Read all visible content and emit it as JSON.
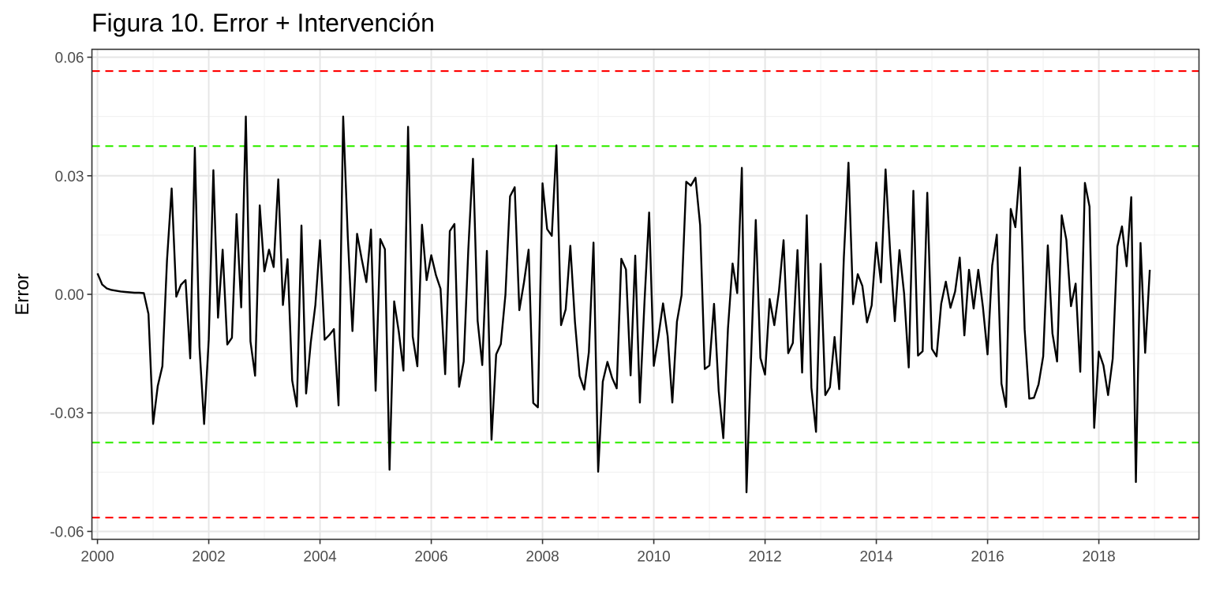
{
  "chart_data": {
    "type": "line",
    "title": "Figura 10. Error + Intervención",
    "xlabel": "",
    "ylabel": "Error",
    "xlim": [
      1999.9,
      2019.8
    ],
    "ylim": [
      -0.062,
      0.062
    ],
    "x_ticks": [
      2000,
      2002,
      2004,
      2006,
      2008,
      2010,
      2012,
      2014,
      2016,
      2018
    ],
    "y_ticks": [
      -0.06,
      -0.03,
      0.0,
      0.03,
      0.06
    ],
    "y_tick_labels": [
      "-0.06",
      "-0.03",
      "0.00",
      "0.03",
      "0.06"
    ],
    "grid": true,
    "legend": "none",
    "reference_lines": [
      {
        "y": 0.0565,
        "color": "#ff0000",
        "style": "dashed"
      },
      {
        "y": 0.0375,
        "color": "#33ee00",
        "style": "dashed"
      },
      {
        "y": -0.0375,
        "color": "#33ee00",
        "style": "dashed"
      },
      {
        "y": -0.0565,
        "color": "#ff0000",
        "style": "dashed"
      }
    ],
    "series": [
      {
        "color": "#000000",
        "x_start": 2000.0,
        "x_step": 0.08333,
        "values": [
          0.0053,
          0.0025,
          0.0015,
          0.0011,
          0.0009,
          0.0007,
          0.0006,
          0.0005,
          0.0004,
          0.0004,
          0.0003,
          -0.005,
          -0.0328,
          -0.0232,
          -0.0182,
          0.0087,
          0.0268,
          -0.0006,
          0.0024,
          0.0036,
          -0.0162,
          0.0371,
          -0.0133,
          -0.0328,
          -0.0114,
          0.0314,
          -0.0059,
          0.0113,
          -0.0127,
          -0.011,
          0.0203,
          -0.0033,
          0.045,
          -0.0119,
          -0.0206,
          0.0225,
          0.0058,
          0.0113,
          0.0069,
          0.0291,
          -0.0027,
          0.0089,
          -0.0218,
          -0.0284,
          0.0174,
          -0.0251,
          -0.0123,
          -0.0027,
          0.0137,
          -0.0115,
          -0.0103,
          -0.0088,
          -0.0281,
          0.045,
          0.0144,
          -0.0093,
          0.0153,
          0.0089,
          0.0031,
          0.0164,
          -0.0244,
          0.014,
          0.0114,
          -0.0444,
          -0.0018,
          -0.0095,
          -0.0193,
          0.0424,
          -0.0107,
          -0.0182,
          0.0176,
          0.0036,
          0.0099,
          0.0049,
          0.0014,
          -0.0202,
          0.016,
          0.0178,
          -0.0234,
          -0.017,
          0.0115,
          0.0343,
          -0.0067,
          -0.0179,
          0.011,
          -0.0368,
          -0.0152,
          -0.0126,
          -0.0001,
          0.0248,
          0.0271,
          -0.004,
          0.003,
          0.0113,
          -0.0275,
          -0.0286,
          0.0281,
          0.0165,
          0.0148,
          0.0377,
          -0.0078,
          -0.0038,
          0.0123,
          -0.007,
          -0.0207,
          -0.0241,
          -0.0146,
          0.0131,
          -0.0449,
          -0.0221,
          -0.0171,
          -0.0211,
          -0.0238,
          0.009,
          0.0063,
          -0.0205,
          0.0098,
          -0.0274,
          -0.0018,
          0.0207,
          -0.0181,
          -0.0107,
          -0.0023,
          -0.0106,
          -0.0274,
          -0.0069,
          -0.0002,
          0.0285,
          0.0275,
          0.0295,
          0.0175,
          -0.0189,
          -0.018,
          -0.0024,
          -0.0244,
          -0.0364,
          -0.0087,
          0.0078,
          0.0003,
          0.032,
          -0.0501,
          -0.0157,
          0.0188,
          -0.0161,
          -0.0203,
          -0.0012,
          -0.0078,
          0.0008,
          0.0137,
          -0.0149,
          -0.0123,
          0.0112,
          -0.0198,
          0.02,
          -0.0236,
          -0.0348,
          0.0077,
          -0.0255,
          -0.0235,
          -0.0108,
          -0.024,
          0.0093,
          0.0333,
          -0.0025,
          0.0051,
          0.0021,
          -0.0071,
          -0.0028,
          0.0131,
          0.003,
          0.0316,
          0.0105,
          -0.0068,
          0.0112,
          0.0002,
          -0.0185,
          0.0262,
          -0.0155,
          -0.0144,
          0.0257,
          -0.0138,
          -0.0157,
          -0.0024,
          0.0032,
          -0.0034,
          0.0007,
          0.0093,
          -0.0104,
          0.0062,
          -0.0036,
          0.0062,
          -0.0032,
          -0.0152,
          0.0073,
          0.0151,
          -0.0226,
          -0.0285,
          0.0216,
          0.017,
          0.0321,
          -0.0088,
          -0.0264,
          -0.0262,
          -0.0228,
          -0.0157,
          0.0124,
          -0.0099,
          -0.017,
          0.02,
          0.0138,
          -0.003,
          0.0027,
          -0.0196,
          0.0282,
          0.0222,
          -0.0338,
          -0.0145,
          -0.018,
          -0.0255,
          -0.0163,
          0.0121,
          0.0172,
          0.0071,
          0.0246,
          -0.0475,
          0.013,
          -0.0148,
          0.0062
        ]
      }
    ]
  }
}
